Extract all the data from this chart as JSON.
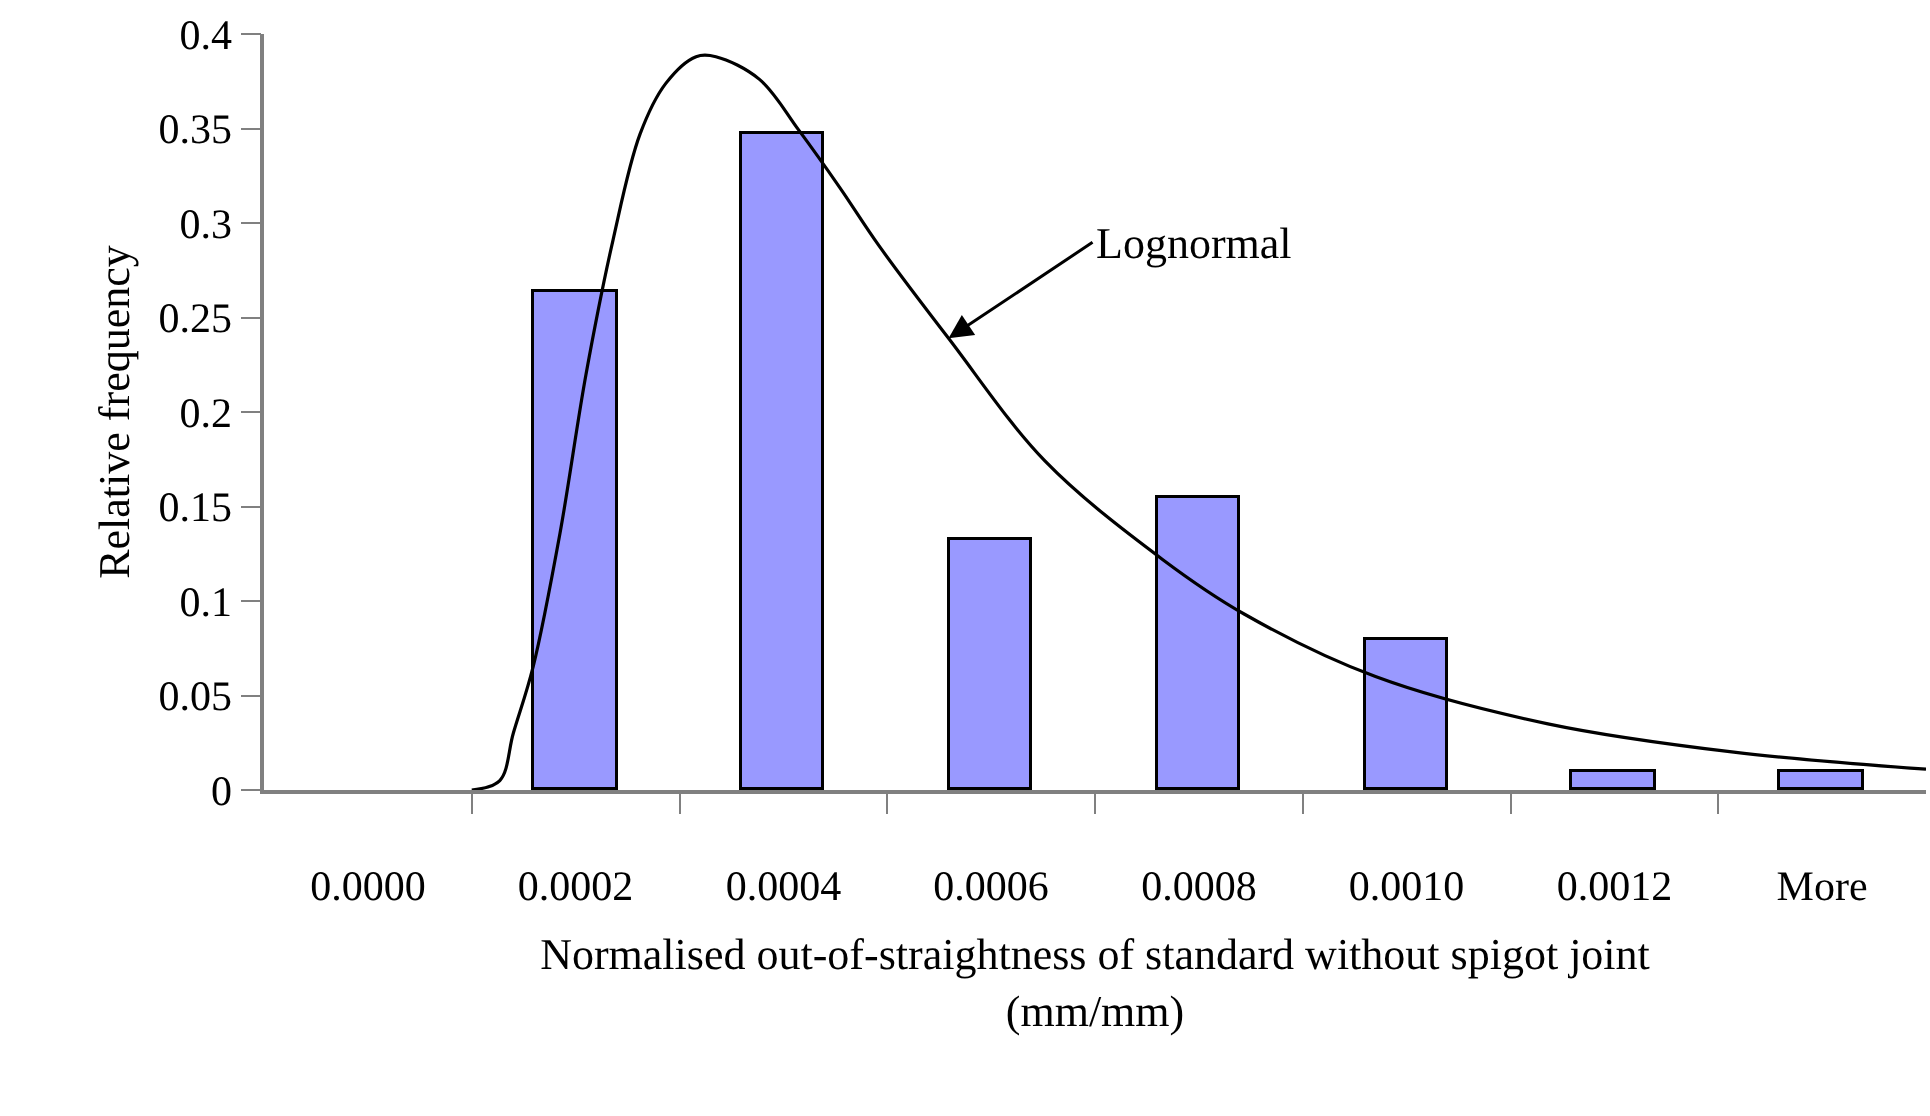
{
  "chart_data": {
    "type": "bar",
    "xlabel": "Normalised out-of-straightness of standard without spigot joint\n(mm/mm)",
    "ylabel": "Relative frequency",
    "x": [
      0,
      0.0002,
      0.0004,
      0.0006,
      0.0008,
      0.001,
      0.0012,
      0.0014
    ],
    "series": [
      {
        "color": "#9999ff",
        "values": [
          0,
          0.263,
          0.347,
          0.132,
          0.155,
          0.079,
          0.01,
          0.01
        ]
      },
      {
        "type": "line",
        "name": "Lognormal",
        "color": "#000000",
        "x": [
          0.0001,
          0.000127,
          0.00014,
          0.000159,
          0.000185,
          0.00021,
          0.000236,
          0.000262,
          0.000287,
          0.000316,
          0.000335,
          0.000377,
          0.000415,
          0.000454,
          0.000492,
          0.000559,
          0.000652,
          0.000765,
          0.000844,
          0.00097,
          0.001136,
          0.001315,
          0.0015
        ],
        "values": [
          0,
          0.005,
          0.03,
          0.065,
          0.136,
          0.22,
          0.291,
          0.347,
          0.374,
          0.388,
          0.388,
          0.376,
          0.349,
          0.319,
          0.288,
          0.239,
          0.174,
          0.122,
          0.093,
          0.06,
          0.035,
          0.02,
          0.011
        ]
      }
    ],
    "xlim": [
      -0.0001,
      0.0015
    ],
    "xticks": [
      {
        "value": 0,
        "label": "0.0000"
      },
      {
        "value": 0.0002,
        "label": "0.0002"
      },
      {
        "value": 0.0004,
        "label": "0.0004"
      },
      {
        "value": 0.0006,
        "label": "0.0006"
      },
      {
        "value": 0.0008,
        "label": "0.0008"
      },
      {
        "value": 0.001,
        "label": "0.0010"
      },
      {
        "value": 0.0012,
        "label": "0.0012"
      },
      {
        "value": 0.0014,
        "label": "More"
      },
      {
        "value": 0.0001,
        "label": null
      },
      {
        "value": 0.0003,
        "label": null
      },
      {
        "value": 0.0005,
        "label": null
      },
      {
        "value": 0.0007,
        "label": null
      },
      {
        "value": 0.0009,
        "label": null
      },
      {
        "value": 0.0011,
        "label": null
      },
      {
        "value": 0.0013,
        "label": null
      }
    ],
    "ylim": [
      0,
      0.4
    ],
    "yticks": [
      0,
      0.05,
      0.1,
      0.15,
      0.2,
      0.25,
      0.3,
      0.35,
      0.4
    ],
    "legend": false
  }
}
